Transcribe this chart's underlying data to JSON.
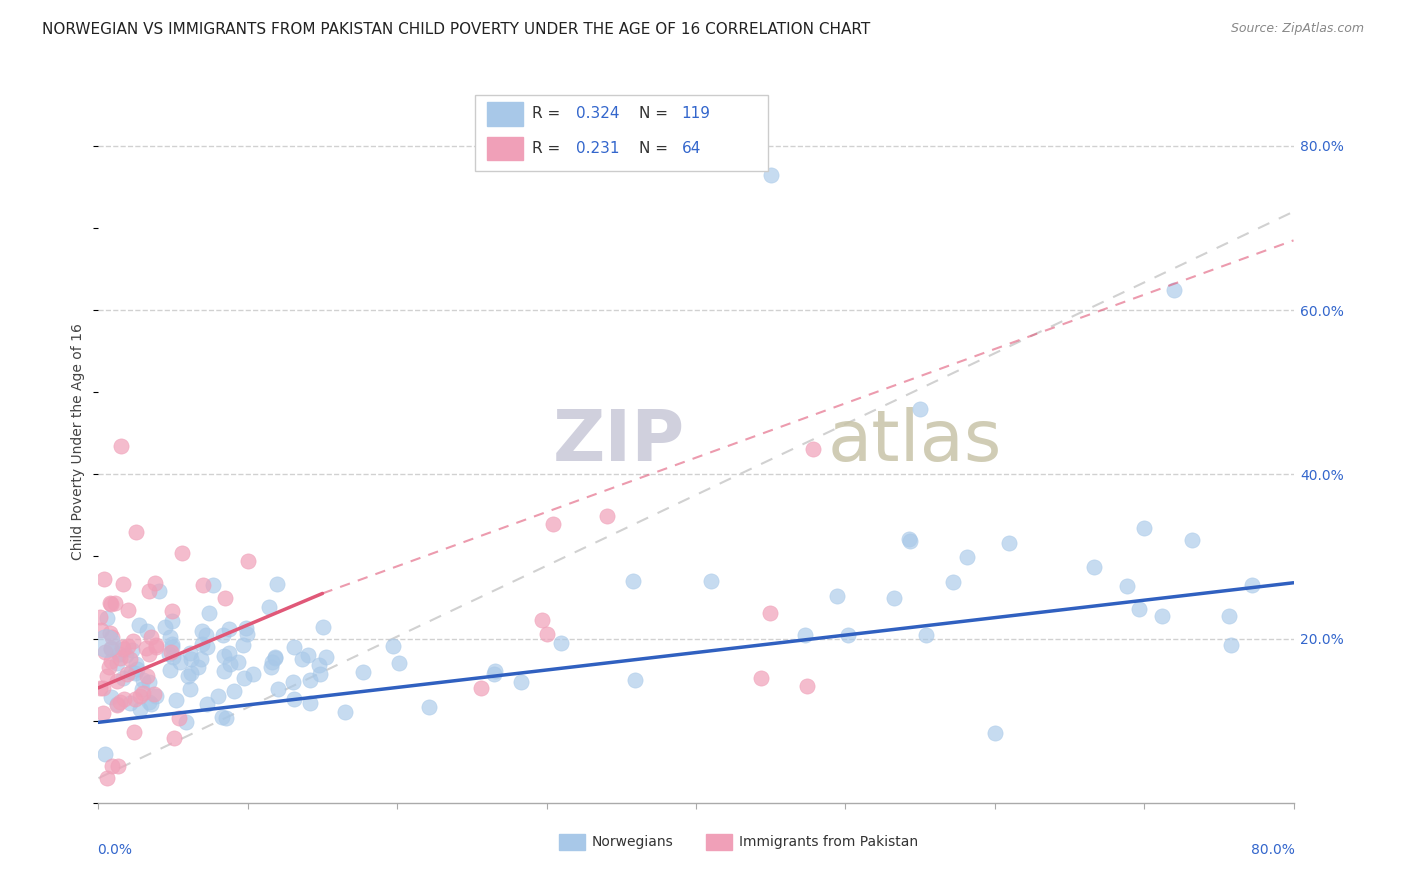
{
  "title": "NORWEGIAN VS IMMIGRANTS FROM PAKISTAN CHILD POVERTY UNDER THE AGE OF 16 CORRELATION CHART",
  "source": "Source: ZipAtlas.com",
  "ylabel": "Child Poverty Under the Age of 16",
  "xlim": [
    0.0,
    0.8
  ],
  "ylim": [
    0.0,
    0.88
  ],
  "legend_label1": "Norwegians",
  "legend_label2": "Immigrants from Pakistan",
  "R1": 0.324,
  "N1": 119,
  "R2": 0.231,
  "N2": 64,
  "color_norwegian": "#A8C8E8",
  "color_pakistan": "#F0A0B8",
  "color_norway_line": "#3060C0",
  "color_pakistan_line": "#E05878",
  "color_gray_dashed": "#CCCCCC",
  "watermark_zip": "ZIP",
  "watermark_atlas": "atlas",
  "watermark_color_zip": "#BBBBCC",
  "watermark_color_atlas": "#BBBBAA",
  "background_color": "#FFFFFF",
  "grid_color": "#DDDDDD",
  "title_fontsize": 11,
  "axis_label_fontsize": 10,
  "tick_fontsize": 10
}
